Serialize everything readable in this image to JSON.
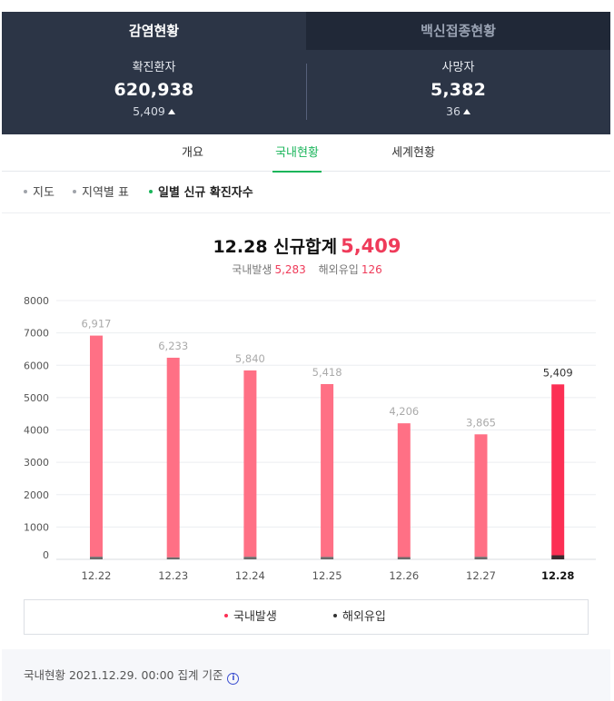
{
  "tabs": {
    "main": "감염현황",
    "vaccine": "백신접종현황"
  },
  "stats": {
    "confirmed": {
      "label": "확진환자",
      "value": "620,938",
      "change": "5,409"
    },
    "deaths": {
      "label": "사망자",
      "value": "5,382",
      "change": "36"
    }
  },
  "subnav": [
    "개요",
    "국내현황",
    "세계현황"
  ],
  "filters": [
    "지도",
    "지역별 표",
    "일별 신규 확진자수"
  ],
  "headline": {
    "date_label": "12.28 신규합계",
    "total": "5,409"
  },
  "breakdown": {
    "domestic_label": "국내발생",
    "domestic_value": "5,283",
    "import_label": "해외유입",
    "import_value": "126"
  },
  "legend": {
    "domestic": "국내발생",
    "imported": "해외유입"
  },
  "footer": {
    "text": "국내현황 2021.12.29. 00:00 집계 기준"
  },
  "colors": {
    "bar": "#ff7085",
    "bar_highlight": "#fc2f54",
    "imported": "#555555",
    "accent": "#19b55a",
    "header_bg": "#2c3546"
  },
  "chart_data": {
    "type": "bar",
    "stacked": true,
    "categories": [
      "12.22",
      "12.23",
      "12.24",
      "12.25",
      "12.26",
      "12.27",
      "12.28"
    ],
    "totals": [
      "6,917",
      "6,233",
      "5,840",
      "5,418",
      "4,206",
      "3,865",
      "5,409"
    ],
    "series": [
      {
        "name": "국내발생",
        "values": [
          6837,
          6172,
          5762,
          5343,
          4136,
          3787,
          5283
        ]
      },
      {
        "name": "해외유입",
        "values": [
          80,
          61,
          78,
          75,
          70,
          78,
          126
        ]
      }
    ],
    "y_ticks": [
      0,
      1000,
      2000,
      3000,
      4000,
      5000,
      6000,
      7000,
      8000
    ],
    "ylim": [
      0,
      8000
    ],
    "highlight_index": 6,
    "grid": true,
    "legend_position": "bottom"
  }
}
